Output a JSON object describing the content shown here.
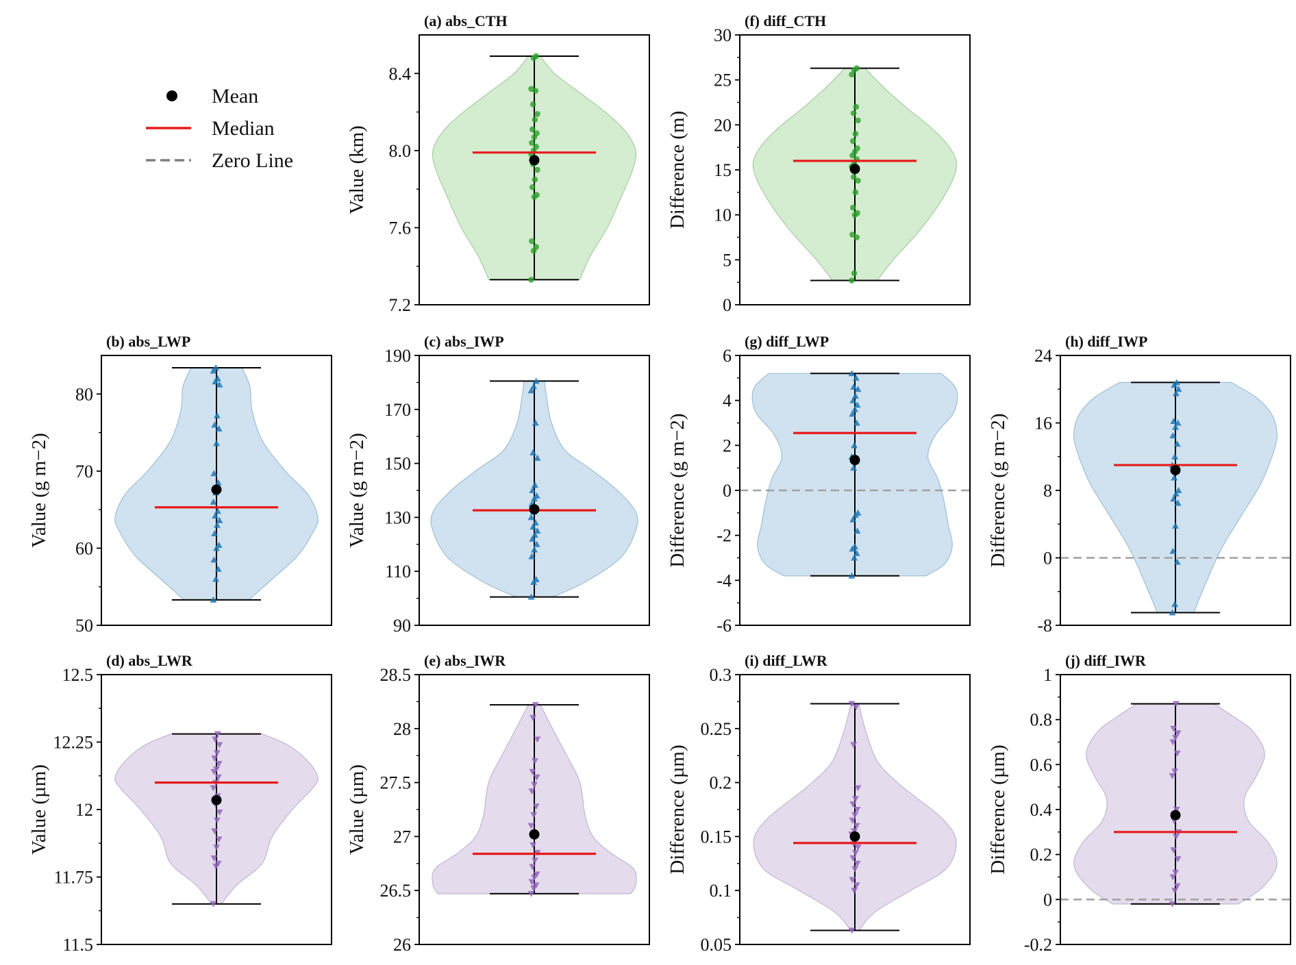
{
  "legend": {
    "mean_label": "Mean",
    "median_label": "Median",
    "zero_label": "Zero Line",
    "mean_color": "#000000",
    "median_color": "#e8191a",
    "zero_color": "#808080"
  },
  "colors": {
    "green_fill": "#d4ecd0",
    "green_edge": "#a9cca4",
    "green_point": "#2ca02c",
    "blue_fill": "#d0e2ef",
    "blue_edge": "#9fbdd4",
    "blue_point": "#1f77b4",
    "purple_fill": "#e4dcec",
    "purple_edge": "#c2b5d2",
    "purple_point": "#9467bd"
  },
  "chart_data": [
    {
      "id": "a",
      "type": "violin",
      "title": "(a) abs_CTH",
      "ylabel": "Value (km)",
      "ylim": [
        7.2,
        8.6
      ],
      "yticks": [
        7.2,
        7.6,
        8.0,
        8.4
      ],
      "ytick_labels": [
        "7.2",
        "7.6",
        "8.0",
        "8.4"
      ],
      "color": "green",
      "marker": "circle",
      "min": 7.33,
      "max": 8.49,
      "median": 7.99,
      "mean": 7.95,
      "points": [
        7.33,
        7.48,
        7.5,
        7.53,
        7.76,
        7.77,
        7.81,
        7.85,
        7.9,
        7.93,
        7.96,
        7.98,
        8.0,
        8.02,
        8.04,
        8.07,
        8.09,
        8.11,
        8.16,
        8.19,
        8.24,
        8.31,
        8.32,
        8.48,
        8.49
      ],
      "violin": [
        [
          7.33,
          0.45
        ],
        [
          7.45,
          0.55
        ],
        [
          7.6,
          0.72
        ],
        [
          7.75,
          0.85
        ],
        [
          7.9,
          0.97
        ],
        [
          8.0,
          1.0
        ],
        [
          8.1,
          0.9
        ],
        [
          8.2,
          0.7
        ],
        [
          8.3,
          0.45
        ],
        [
          8.4,
          0.2
        ],
        [
          8.49,
          0.06
        ]
      ]
    },
    {
      "id": "f",
      "type": "violin",
      "title": "(f) diff_CTH",
      "ylabel": "Difference (m)",
      "ylim": [
        0,
        30
      ],
      "yticks": [
        0,
        5,
        10,
        15,
        20,
        25,
        30
      ],
      "ytick_labels": [
        "0",
        "5",
        "10",
        "15",
        "20",
        "25",
        "30"
      ],
      "color": "green",
      "marker": "circle",
      "min": 2.7,
      "max": 26.3,
      "median": 16.0,
      "mean": 15.1,
      "points": [
        2.7,
        3.5,
        7.5,
        7.8,
        10.0,
        10.2,
        10.8,
        12.5,
        13.8,
        14.2,
        15.0,
        15.4,
        15.8,
        16.2,
        16.6,
        17.0,
        17.4,
        18.2,
        19.0,
        20.5,
        21.3,
        22.0,
        25.6,
        26.1,
        26.3
      ],
      "violin": [
        [
          2.7,
          0.22
        ],
        [
          5,
          0.38
        ],
        [
          8,
          0.62
        ],
        [
          11,
          0.82
        ],
        [
          14,
          0.97
        ],
        [
          16,
          1.0
        ],
        [
          18,
          0.9
        ],
        [
          20,
          0.72
        ],
        [
          22,
          0.5
        ],
        [
          24,
          0.3
        ],
        [
          26.3,
          0.1
        ]
      ]
    },
    {
      "id": "b",
      "type": "violin",
      "title": "(b) abs_LWP",
      "ylabel": "Value (g m−2)",
      "ylim": [
        50,
        85
      ],
      "yticks": [
        50,
        60,
        70,
        80
      ],
      "ytick_labels": [
        "50",
        "60",
        "70",
        "80"
      ],
      "color": "blue",
      "marker": "triangle-up",
      "min": 53.3,
      "max": 83.4,
      "median": 65.3,
      "mean": 67.6,
      "points": [
        53.3,
        56.0,
        57.3,
        58.5,
        60.0,
        60.4,
        61.9,
        63.0,
        63.6,
        64.2,
        64.8,
        66.0,
        67.2,
        68.5,
        69.7,
        73.6,
        75.5,
        76.0,
        77.2,
        81.2,
        81.6,
        82.0,
        83.0,
        83.4
      ],
      "violin": [
        [
          53.3,
          0.32
        ],
        [
          56,
          0.55
        ],
        [
          59,
          0.8
        ],
        [
          62,
          0.95
        ],
        [
          64,
          1.0
        ],
        [
          67,
          0.9
        ],
        [
          70,
          0.68
        ],
        [
          74,
          0.45
        ],
        [
          78,
          0.35
        ],
        [
          81,
          0.33
        ],
        [
          83.4,
          0.25
        ]
      ]
    },
    {
      "id": "c",
      "type": "violin",
      "title": "(c) abs_IWP",
      "ylabel": "Value (g m−2)",
      "ylim": [
        90,
        190
      ],
      "yticks": [
        90,
        110,
        130,
        150,
        170,
        190
      ],
      "ytick_labels": [
        "90",
        "110",
        "130",
        "150",
        "170",
        "190"
      ],
      "color": "blue",
      "marker": "triangle-up",
      "min": 100.5,
      "max": 180.5,
      "median": 132.6,
      "mean": 133.0,
      "points": [
        100.5,
        106.0,
        107.0,
        115.5,
        118.0,
        120.0,
        122.0,
        123.5,
        125.0,
        126.5,
        128.0,
        130.0,
        132.0,
        133.5,
        135.0,
        137.0,
        138.0,
        140.0,
        142.0,
        152.0,
        154.0,
        165.0,
        177.0,
        178.5,
        180.5
      ],
      "violin": [
        [
          100.5,
          0.18
        ],
        [
          106,
          0.5
        ],
        [
          115,
          0.85
        ],
        [
          125,
          1.0
        ],
        [
          132,
          1.0
        ],
        [
          140,
          0.82
        ],
        [
          148,
          0.55
        ],
        [
          155,
          0.3
        ],
        [
          165,
          0.17
        ],
        [
          175,
          0.12
        ],
        [
          180.5,
          0.1
        ]
      ]
    },
    {
      "id": "g",
      "type": "violin",
      "title": "(g) diff_LWP",
      "ylabel": "Difference (g m−2)",
      "ylim": [
        -6,
        6
      ],
      "yticks": [
        -6,
        -4,
        -2,
        0,
        2,
        4,
        6
      ],
      "ytick_labels": [
        "-6",
        "-4",
        "-2",
        "0",
        "2",
        "4",
        "6"
      ],
      "color": "blue",
      "marker": "triangle-up",
      "zero_line": true,
      "min": -3.8,
      "max": 5.2,
      "median": 2.55,
      "mean": 1.35,
      "points": [
        -3.8,
        -3.0,
        -2.8,
        -2.6,
        -2.5,
        -1.8,
        -1.3,
        -1.1,
        -1.0,
        1.0,
        1.3,
        1.5,
        2.0,
        3.0,
        3.4,
        3.6,
        3.8,
        4.0,
        4.2,
        4.5,
        4.6,
        5.0,
        5.2
      ],
      "violin": [
        [
          -3.8,
          0.7
        ],
        [
          -3.3,
          0.88
        ],
        [
          -2.5,
          0.96
        ],
        [
          -1.5,
          0.92
        ],
        [
          -0.5,
          0.88
        ],
        [
          0.5,
          0.82
        ],
        [
          1.5,
          0.72
        ],
        [
          2.5,
          0.8
        ],
        [
          3.5,
          0.98
        ],
        [
          4.5,
          1.0
        ],
        [
          5.2,
          0.85
        ]
      ]
    },
    {
      "id": "h",
      "type": "violin",
      "title": "(h) diff_IWP",
      "ylabel": "Difference (g m−2)",
      "ylim": [
        -8,
        24
      ],
      "yticks": [
        -8,
        0,
        8,
        16,
        24
      ],
      "ytick_labels": [
        "-8",
        "0",
        "8",
        "16",
        "24"
      ],
      "color": "blue",
      "marker": "triangle-up",
      "zero_line": true,
      "min": -6.5,
      "max": 20.8,
      "median": 11.0,
      "mean": 10.4,
      "points": [
        -6.5,
        -5.5,
        -0.5,
        0.8,
        3.8,
        6.5,
        7.0,
        7.6,
        8.0,
        9.5,
        10.5,
        11.0,
        12.0,
        13.5,
        14.5,
        15.5,
        16.0,
        16.2,
        19.5,
        20.0,
        20.5,
        20.8
      ],
      "violin": [
        [
          -6.5,
          0.18
        ],
        [
          -3,
          0.3
        ],
        [
          1,
          0.45
        ],
        [
          5,
          0.65
        ],
        [
          9,
          0.85
        ],
        [
          13,
          0.98
        ],
        [
          15,
          1.0
        ],
        [
          17,
          0.95
        ],
        [
          19,
          0.8
        ],
        [
          20.8,
          0.55
        ]
      ]
    },
    {
      "id": "d",
      "type": "violin",
      "title": "(d) abs_LWR",
      "ylabel": "Value (µm)",
      "ylim": [
        11.5,
        12.5
      ],
      "yticks": [
        11.5,
        11.75,
        12.0,
        12.25,
        12.5
      ],
      "ytick_labels": [
        "11.5",
        "11.75",
        "12",
        "12.25",
        "12.5"
      ],
      "color": "purple",
      "marker": "triangle-down",
      "min": 11.65,
      "max": 12.28,
      "median": 12.1,
      "mean": 12.035,
      "points": [
        11.65,
        11.79,
        11.8,
        11.82,
        11.86,
        11.89,
        11.92,
        11.96,
        11.99,
        12.02,
        12.05,
        12.08,
        12.1,
        12.12,
        12.14,
        12.15,
        12.17,
        12.19,
        12.21,
        12.24,
        12.26,
        12.28
      ],
      "violin": [
        [
          11.65,
          0.05
        ],
        [
          11.72,
          0.2
        ],
        [
          11.8,
          0.45
        ],
        [
          11.9,
          0.55
        ],
        [
          12.0,
          0.75
        ],
        [
          12.08,
          0.95
        ],
        [
          12.12,
          1.0
        ],
        [
          12.18,
          0.9
        ],
        [
          12.24,
          0.7
        ],
        [
          12.28,
          0.45
        ]
      ]
    },
    {
      "id": "e",
      "type": "violin",
      "title": "(e) abs_IWR",
      "ylabel": "Value (µm)",
      "ylim": [
        26,
        28.5
      ],
      "yticks": [
        26,
        26.5,
        27,
        27.5,
        28,
        28.5
      ],
      "ytick_labels": [
        "26",
        "26.5",
        "27",
        "27.5",
        "28",
        "28.5"
      ],
      "color": "purple",
      "marker": "triangle-down",
      "min": 26.47,
      "max": 28.22,
      "median": 26.84,
      "mean": 27.02,
      "points": [
        26.47,
        26.52,
        26.55,
        26.58,
        26.62,
        26.65,
        26.72,
        26.78,
        26.85,
        26.92,
        27.0,
        27.1,
        27.2,
        27.28,
        27.42,
        27.48,
        27.55,
        27.6,
        27.7,
        27.9,
        28.1,
        28.22
      ],
      "violin": [
        [
          26.47,
          0.95
        ],
        [
          26.55,
          1.0
        ],
        [
          26.7,
          0.98
        ],
        [
          26.85,
          0.75
        ],
        [
          27.0,
          0.58
        ],
        [
          27.2,
          0.5
        ],
        [
          27.5,
          0.45
        ],
        [
          27.75,
          0.32
        ],
        [
          28.0,
          0.18
        ],
        [
          28.22,
          0.06
        ]
      ]
    },
    {
      "id": "i",
      "type": "violin",
      "title": "(i) diff_LWR",
      "ylabel": "Difference (µm)",
      "ylim": [
        0.05,
        0.3
      ],
      "yticks": [
        0.05,
        0.1,
        0.15,
        0.2,
        0.25,
        0.3
      ],
      "ytick_labels": [
        "0.05",
        "0.1",
        "0.15",
        "0.2",
        "0.25",
        "0.3"
      ],
      "color": "purple",
      "marker": "triangle-down",
      "min": 0.063,
      "max": 0.273,
      "median": 0.144,
      "mean": 0.15,
      "points": [
        0.063,
        0.1,
        0.105,
        0.11,
        0.12,
        0.125,
        0.13,
        0.135,
        0.14,
        0.143,
        0.148,
        0.152,
        0.155,
        0.16,
        0.165,
        0.17,
        0.175,
        0.18,
        0.185,
        0.195,
        0.235,
        0.27,
        0.273
      ],
      "violin": [
        [
          0.063,
          0.04
        ],
        [
          0.08,
          0.2
        ],
        [
          0.1,
          0.55
        ],
        [
          0.12,
          0.9
        ],
        [
          0.145,
          1.0
        ],
        [
          0.165,
          0.88
        ],
        [
          0.185,
          0.62
        ],
        [
          0.2,
          0.42
        ],
        [
          0.22,
          0.22
        ],
        [
          0.25,
          0.1
        ],
        [
          0.273,
          0.04
        ]
      ]
    },
    {
      "id": "j",
      "type": "violin",
      "title": "(j) diff_IWR",
      "ylabel": "Difference (µm)",
      "ylim": [
        -0.2,
        1.0
      ],
      "yticks": [
        -0.2,
        0,
        0.2,
        0.4,
        0.6,
        0.8,
        1.0
      ],
      "ytick_labels": [
        "-0.2",
        "0",
        "0.2",
        "0.4",
        "0.6",
        "0.8",
        "1"
      ],
      "color": "purple",
      "marker": "triangle-down",
      "zero_line": true,
      "min": -0.02,
      "max": 0.87,
      "median": 0.3,
      "mean": 0.375,
      "points": [
        -0.02,
        0.04,
        0.06,
        0.1,
        0.12,
        0.18,
        0.22,
        0.28,
        0.3,
        0.35,
        0.4,
        0.55,
        0.57,
        0.65,
        0.7,
        0.72,
        0.74,
        0.76,
        0.87
      ],
      "violin": [
        [
          -0.02,
          0.62
        ],
        [
          0.05,
          0.85
        ],
        [
          0.15,
          1.0
        ],
        [
          0.25,
          0.92
        ],
        [
          0.35,
          0.72
        ],
        [
          0.45,
          0.68
        ],
        [
          0.55,
          0.8
        ],
        [
          0.65,
          0.88
        ],
        [
          0.75,
          0.76
        ],
        [
          0.82,
          0.55
        ],
        [
          0.87,
          0.38
        ]
      ]
    }
  ]
}
